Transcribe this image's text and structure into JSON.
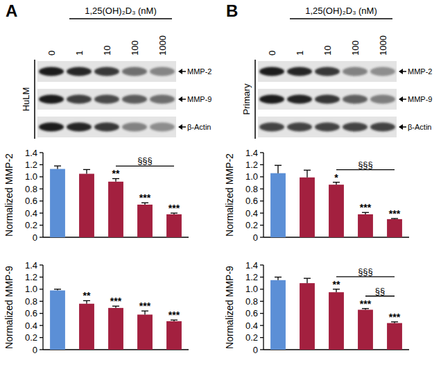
{
  "chart_data": [
    {
      "type": "bar",
      "y_label": "Normalized MMP-2",
      "categories": [
        null,
        null,
        null,
        null,
        null
      ],
      "values": [
        1.13,
        1.05,
        0.92,
        0.54,
        0.38
      ],
      "errors": [
        0.05,
        0.07,
        0.05,
        0.03,
        0.02
      ],
      "colors": [
        "#5b8fd6",
        "#a3203f",
        "#a3203f",
        "#a3203f",
        "#a3203f"
      ],
      "significance": [
        null,
        null,
        "**",
        "***",
        "***"
      ],
      "comparisons": [
        {
          "from": 2,
          "to": 4,
          "label": "§§§"
        }
      ],
      "ylim": [
        0,
        1.4
      ],
      "yticks": [
        0,
        0.2,
        0.4,
        0.6,
        0.8,
        {
          "value": 1,
          "label": "1.0"
        },
        1.2,
        1.4
      ],
      "tick_labels": "y"
    },
    {
      "type": "bar",
      "y_label": "Normalized MMP-9",
      "categories": [
        null,
        null,
        null,
        null,
        null
      ],
      "values": [
        0.98,
        0.76,
        0.69,
        0.58,
        0.47
      ],
      "errors": [
        0.02,
        0.05,
        0.03,
        0.06,
        0.02
      ],
      "colors": [
        "#5b8fd6",
        "#a3203f",
        "#a3203f",
        "#a3203f",
        "#a3203f"
      ],
      "significance": [
        null,
        "**",
        "***",
        "***",
        "***"
      ],
      "comparisons": [],
      "ylim": [
        0,
        1.4
      ],
      "yticks": [
        0,
        0.2,
        0.4,
        0.6,
        0.8,
        {
          "value": 1,
          "label": "1.0"
        },
        1.2,
        1.4
      ],
      "tick_labels": "y"
    },
    {
      "type": "bar",
      "y_label": "Normalized MMP-2",
      "categories": [
        null,
        null,
        null,
        null,
        null
      ],
      "values": [
        1.06,
        0.99,
        0.87,
        0.38,
        0.3
      ],
      "errors": [
        0.13,
        0.12,
        0.04,
        0.03,
        0.01
      ],
      "colors": [
        "#5b8fd6",
        "#a3203f",
        "#a3203f",
        "#a3203f",
        "#a3203f"
      ],
      "significance": [
        null,
        null,
        "*",
        "***",
        "***"
      ],
      "comparisons": [
        {
          "from": 2,
          "to": 4,
          "label": "§§§"
        }
      ],
      "ylim": [
        0,
        1.4
      ],
      "yticks": [
        0,
        0.2,
        0.4,
        0.6,
        0.8,
        {
          "value": 1,
          "label": "1.0"
        },
        1.2,
        1.4
      ],
      "tick_labels": "y"
    },
    {
      "type": "bar",
      "y_label": "Normalized MMP-9",
      "categories": [
        null,
        null,
        null,
        null,
        null
      ],
      "values": [
        1.15,
        1.1,
        0.95,
        0.66,
        0.44
      ],
      "errors": [
        0.05,
        0.08,
        0.05,
        0.02,
        0.02
      ],
      "colors": [
        "#5b8fd6",
        "#a3203f",
        "#a3203f",
        "#a3203f",
        "#a3203f"
      ],
      "significance": [
        null,
        null,
        "**",
        "***",
        "***"
      ],
      "comparisons": [
        {
          "from": 2,
          "to": 4,
          "label": "§§§"
        },
        {
          "from": 3,
          "to": 4,
          "label": "§§"
        }
      ],
      "ylim": [
        0,
        1.4
      ],
      "yticks": [
        0,
        0.2,
        0.4,
        0.6,
        0.8,
        {
          "value": 1,
          "label": "1.0"
        },
        1.2,
        1.4
      ],
      "tick_labels": "y"
    }
  ],
  "panels": [
    {
      "label": "A",
      "sample": "HuLM",
      "treatment": "1,25(OH)₂D₃ (nM)",
      "doses": [
        "0",
        "1",
        "10",
        "100",
        "1000"
      ],
      "bands": [
        "MMP-2",
        "MMP-9",
        "β-Actin"
      ]
    },
    {
      "label": "B",
      "sample": "Primary",
      "treatment": "1,25(OH)₂D₃ (nM)",
      "doses": [
        "0",
        "1",
        "10",
        "100",
        "1000"
      ],
      "bands": [
        "MMP-2",
        "MMP-9",
        "β-Actin"
      ]
    }
  ]
}
